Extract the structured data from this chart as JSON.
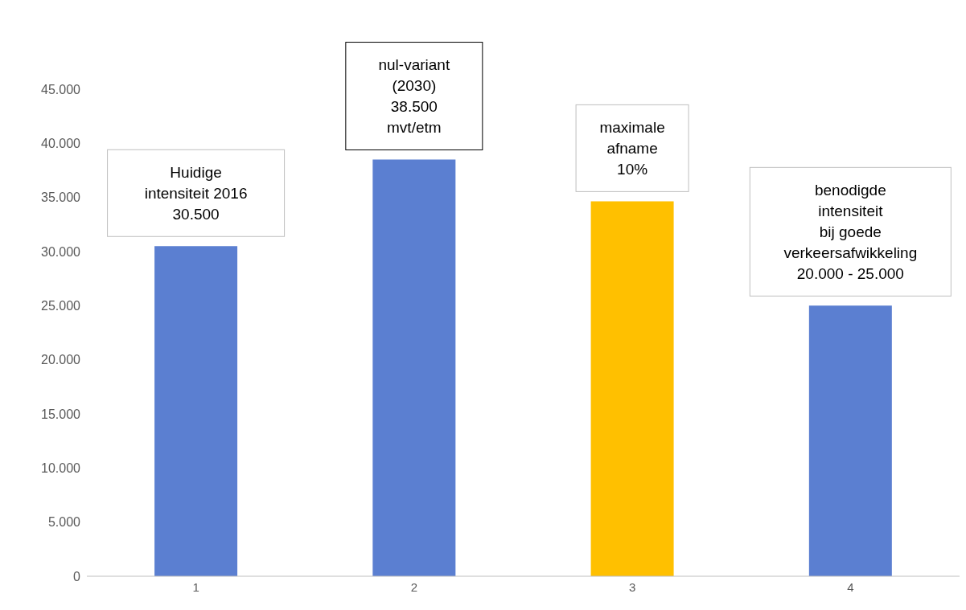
{
  "chart_data": {
    "type": "bar",
    "categories": [
      "1",
      "2",
      "3",
      "4"
    ],
    "values": [
      30500,
      38500,
      34650,
      25000
    ],
    "colors": [
      "#5b7fd1",
      "#5b7fd1",
      "#ffc000",
      "#5b7fd1"
    ],
    "ylim": [
      0,
      45000
    ],
    "yticks": [
      {
        "value": 0,
        "label": "0"
      },
      {
        "value": 5000,
        "label": "5.000"
      },
      {
        "value": 10000,
        "label": "10.000"
      },
      {
        "value": 15000,
        "label": "15.000"
      },
      {
        "value": 20000,
        "label": "20.000"
      },
      {
        "value": 25000,
        "label": "25.000"
      },
      {
        "value": 30000,
        "label": "30.000"
      },
      {
        "value": 35000,
        "label": "35.000"
      },
      {
        "value": 40000,
        "label": "40.000"
      },
      {
        "value": 45000,
        "label": "45.000"
      }
    ],
    "grid": false,
    "legend": false,
    "annotations": [
      {
        "text": "Huidige\nintensiteit 2016\n30.500",
        "x": "1",
        "y": 30500
      },
      {
        "text": "nul-variant\n(2030)\n38.500\nmvt/etm",
        "x": "2",
        "y": 38500
      },
      {
        "text": "maximale\nafname\n10%",
        "x": "3",
        "y": 34650
      },
      {
        "text": "benodigde\nintensiteit\nbij goede\nverkeersafwikkeling\n20.000 - 25.000",
        "x": "4",
        "y": 25000
      }
    ]
  }
}
